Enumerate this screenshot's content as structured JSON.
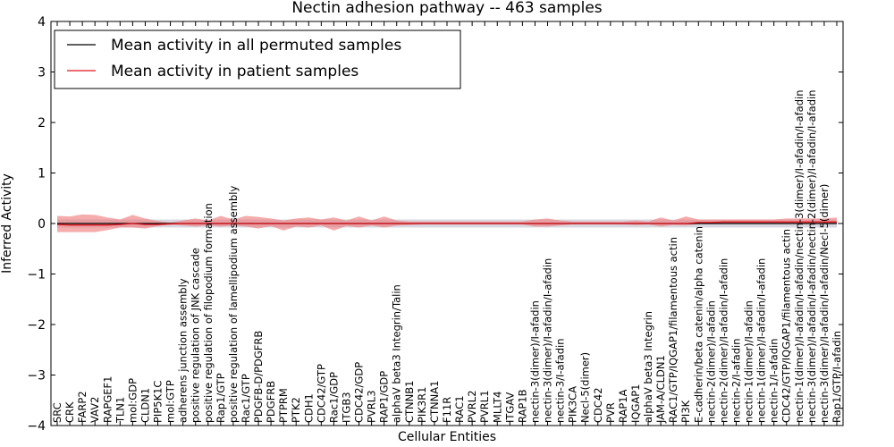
{
  "chart_data": {
    "type": "line",
    "title": "Nectin adhesion pathway -- 463 samples",
    "xlabel": "Cellular Entities",
    "ylabel": "Inferred Activity",
    "ylim": [
      -4,
      4
    ],
    "yticks": [
      -4,
      -3,
      -2,
      -1,
      0,
      1,
      2,
      3,
      4
    ],
    "legend_position": "top-left",
    "colors": {
      "permuted_line": "#000000",
      "permuted_band": "#b8b8c8",
      "patient_line": "#e0141e",
      "patient_band": "#f08080",
      "grid": "#000000"
    },
    "categories": [
      "SRC",
      "CRK",
      "FARP2",
      "VAV2",
      "RAPGEF1",
      "TLN1",
      "mol:GDP",
      "CLDN1",
      "PIP5K1C",
      "mol:GTP",
      "adherens junction assembly",
      "positive regulation of JNK cascade",
      "positive regulation of filopodium formation",
      "Rap1/GTP",
      "positive regulation of lamellipodium assembly",
      "Rac1/GTP",
      "PDGFB-D/PDGFRB",
      "PDGFRB",
      "PTPRM",
      "PTK2",
      "CDH1",
      "CDC42/GTP",
      "Rac1/GDP",
      "ITGB3",
      "CDC42/GDP",
      "PVRL3",
      "RAP1/GDP",
      "alphaV beta3 Integrin/Talin",
      "CTNNB1",
      "PIK3R1",
      "CTNNA1",
      "F11R",
      "RAC1",
      "PVRL2",
      "PVRL1",
      "MLLT4",
      "ITGAV",
      "RAP1B",
      "nectin-3(dimer)/I-afadin",
      "nectin-3(dimer)/I-afadin/I-afadin",
      "nectin-3/I-afadin",
      "PIK3CA",
      "Necl-5(dimer)",
      "CDC42",
      "PVR",
      "RAP1A",
      "IQGAP1",
      "alphaV beta3 Integrin",
      "JAM-A/CLDN1",
      "RAC1/GTP/IQGAP1/filamentous actin",
      "PI3K",
      "E-cadherin/beta catenin/alpha catenin",
      "nectin-2(dimer)/I-afadin",
      "nectin-2(dimer)/I-afadin/I-afadin",
      "nectin-2/I-afadin",
      "nectin-1(dimer)/I-afadin",
      "nectin-1(dimer)/I-afadin/I-afadin",
      "nectin-1/I-afadin",
      "CDC42/GTP/IQGAP1/filamentous actin",
      "nectin-1(dimer)/I-afadin/I-afadin/nectin-3(dimer)/I-afadin/I-afadin",
      "nectin-3(dimer)/I-afadin/I-afadin/nectin-2(dimer)/I-afadin/I-afadin",
      "nectin-3(dimer)/I-afadin/I-afadin/Necl-5(dimer)",
      "Rap1/GTP/I-afadin"
    ],
    "series": [
      {
        "name": "Mean activity in all permuted samples",
        "values": [
          0,
          0,
          0,
          0,
          0,
          0,
          0,
          0,
          0,
          0,
          0,
          0,
          0,
          0,
          0,
          0,
          0,
          0,
          0,
          0,
          0,
          0,
          0,
          0,
          0,
          0,
          0,
          0,
          0,
          0,
          0,
          0,
          0,
          0,
          0,
          0,
          0,
          0,
          0,
          0,
          0,
          0,
          0,
          0,
          0,
          0,
          0,
          0,
          0,
          0,
          0,
          0,
          0,
          0,
          0,
          0,
          0,
          0,
          0,
          0,
          0,
          0,
          0
        ],
        "band": [
          0.08,
          0.08,
          0.08,
          0.08,
          0.08,
          0.08,
          0.08,
          0.08,
          0.08,
          0.08,
          0.08,
          0.08,
          0.08,
          0.08,
          0.08,
          0.08,
          0.08,
          0.08,
          0.08,
          0.08,
          0.08,
          0.08,
          0.08,
          0.08,
          0.08,
          0.08,
          0.08,
          0.08,
          0.08,
          0.08,
          0.08,
          0.08,
          0.08,
          0.08,
          0.08,
          0.08,
          0.08,
          0.08,
          0.08,
          0.08,
          0.08,
          0.08,
          0.08,
          0.08,
          0.08,
          0.08,
          0.08,
          0.08,
          0.08,
          0.08,
          0.08,
          0.08,
          0.08,
          0.08,
          0.08,
          0.08,
          0.08,
          0.08,
          0.08,
          0.08,
          0.08,
          0.08,
          0.08
        ]
      },
      {
        "name": "Mean activity in patient samples",
        "values": [
          -0.02,
          -0.03,
          -0.03,
          -0.03,
          -0.03,
          -0.02,
          0.0,
          -0.02,
          -0.02,
          -0.01,
          0.0,
          0.0,
          0.0,
          0.0,
          0.0,
          0.0,
          0.0,
          0.0,
          0.0,
          0.0,
          0.0,
          0.0,
          0.0,
          0.0,
          0.0,
          0.0,
          0.0,
          0.0,
          0.0,
          0.0,
          0.0,
          0.0,
          0.0,
          0.0,
          0.0,
          0.0,
          0.0,
          0.0,
          0.0,
          0.0,
          0.0,
          0.0,
          0.0,
          0.0,
          0.0,
          0.0,
          0.0,
          0.0,
          0.0,
          0.0,
          0.0,
          0.02,
          0.02,
          0.03,
          0.03,
          0.03,
          0.03,
          0.03,
          0.03,
          0.03,
          0.03,
          0.03,
          0.03
        ],
        "upper": [
          0.15,
          0.14,
          0.18,
          0.17,
          0.12,
          0.08,
          0.17,
          0.1,
          0.05,
          0.02,
          0.06,
          0.1,
          0.06,
          0.15,
          0.08,
          0.15,
          0.13,
          0.1,
          0.06,
          0.1,
          0.12,
          0.08,
          0.12,
          0.06,
          0.14,
          0.06,
          0.14,
          0.06,
          0.04,
          0.04,
          0.04,
          0.04,
          0.04,
          0.04,
          0.04,
          0.04,
          0.04,
          0.04,
          0.08,
          0.1,
          0.06,
          0.04,
          0.04,
          0.04,
          0.04,
          0.04,
          0.06,
          0.04,
          0.12,
          0.06,
          0.14,
          0.08,
          0.08,
          0.08,
          0.08,
          0.08,
          0.08,
          0.08,
          0.1,
          0.1,
          0.1,
          0.1,
          0.12
        ],
        "lower": [
          -0.17,
          -0.17,
          -0.17,
          -0.17,
          -0.13,
          -0.08,
          -0.08,
          -0.1,
          -0.05,
          -0.02,
          -0.04,
          -0.06,
          -0.04,
          -0.06,
          -0.04,
          -0.06,
          -0.1,
          -0.05,
          -0.14,
          -0.06,
          -0.08,
          -0.04,
          -0.14,
          -0.05,
          -0.08,
          -0.04,
          -0.08,
          -0.04,
          -0.03,
          -0.02,
          -0.02,
          -0.02,
          -0.02,
          -0.02,
          -0.02,
          -0.02,
          -0.02,
          -0.02,
          -0.06,
          -0.06,
          -0.04,
          -0.02,
          -0.02,
          -0.02,
          -0.02,
          -0.02,
          -0.03,
          -0.02,
          -0.06,
          -0.03,
          -0.04,
          -0.01,
          -0.01,
          -0.01,
          -0.01,
          -0.01,
          -0.01,
          -0.01,
          -0.01,
          -0.01,
          -0.01,
          -0.01,
          -0.01
        ]
      }
    ]
  }
}
